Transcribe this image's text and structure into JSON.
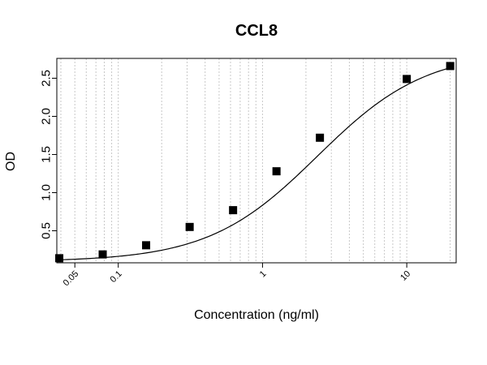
{
  "chart_data": {
    "type": "scatter",
    "title": "CCL8",
    "xlabel": "Concentration (ng/ml)",
    "ylabel": "OD",
    "x_scale": "log",
    "xlim": [
      0.0375,
      22
    ],
    "ylim": [
      0.08,
      2.76
    ],
    "grid": "vertical dotted lines at log minor ticks",
    "x_ticks": [
      {
        "value": 0.05,
        "label": "0.05"
      },
      {
        "value": 0.1,
        "label": "0.1"
      },
      {
        "value": 1,
        "label": "1"
      },
      {
        "value": 10,
        "label": "10"
      }
    ],
    "y_ticks": [
      {
        "value": 0.5,
        "label": "0.5"
      },
      {
        "value": 1.0,
        "label": "1.0"
      },
      {
        "value": 1.5,
        "label": "1.5"
      },
      {
        "value": 2.0,
        "label": "2.0"
      },
      {
        "value": 2.5,
        "label": "2.5"
      }
    ],
    "series": [
      {
        "marker": "filled-square",
        "color": "#000000",
        "points": [
          {
            "x": 0.039,
            "y": 0.14
          },
          {
            "x": 0.078,
            "y": 0.19
          },
          {
            "x": 0.156,
            "y": 0.31
          },
          {
            "x": 0.3125,
            "y": 0.55
          },
          {
            "x": 0.625,
            "y": 0.77
          },
          {
            "x": 1.25,
            "y": 1.28
          },
          {
            "x": 2.5,
            "y": 1.72
          },
          {
            "x": 10,
            "y": 2.49
          },
          {
            "x": 20,
            "y": 2.66
          }
        ]
      }
    ],
    "fit": {
      "model": "4PL",
      "bottom": 0.095,
      "top": 2.86,
      "ec50": 2.4,
      "hill": 1.15,
      "color": "#000000"
    }
  }
}
